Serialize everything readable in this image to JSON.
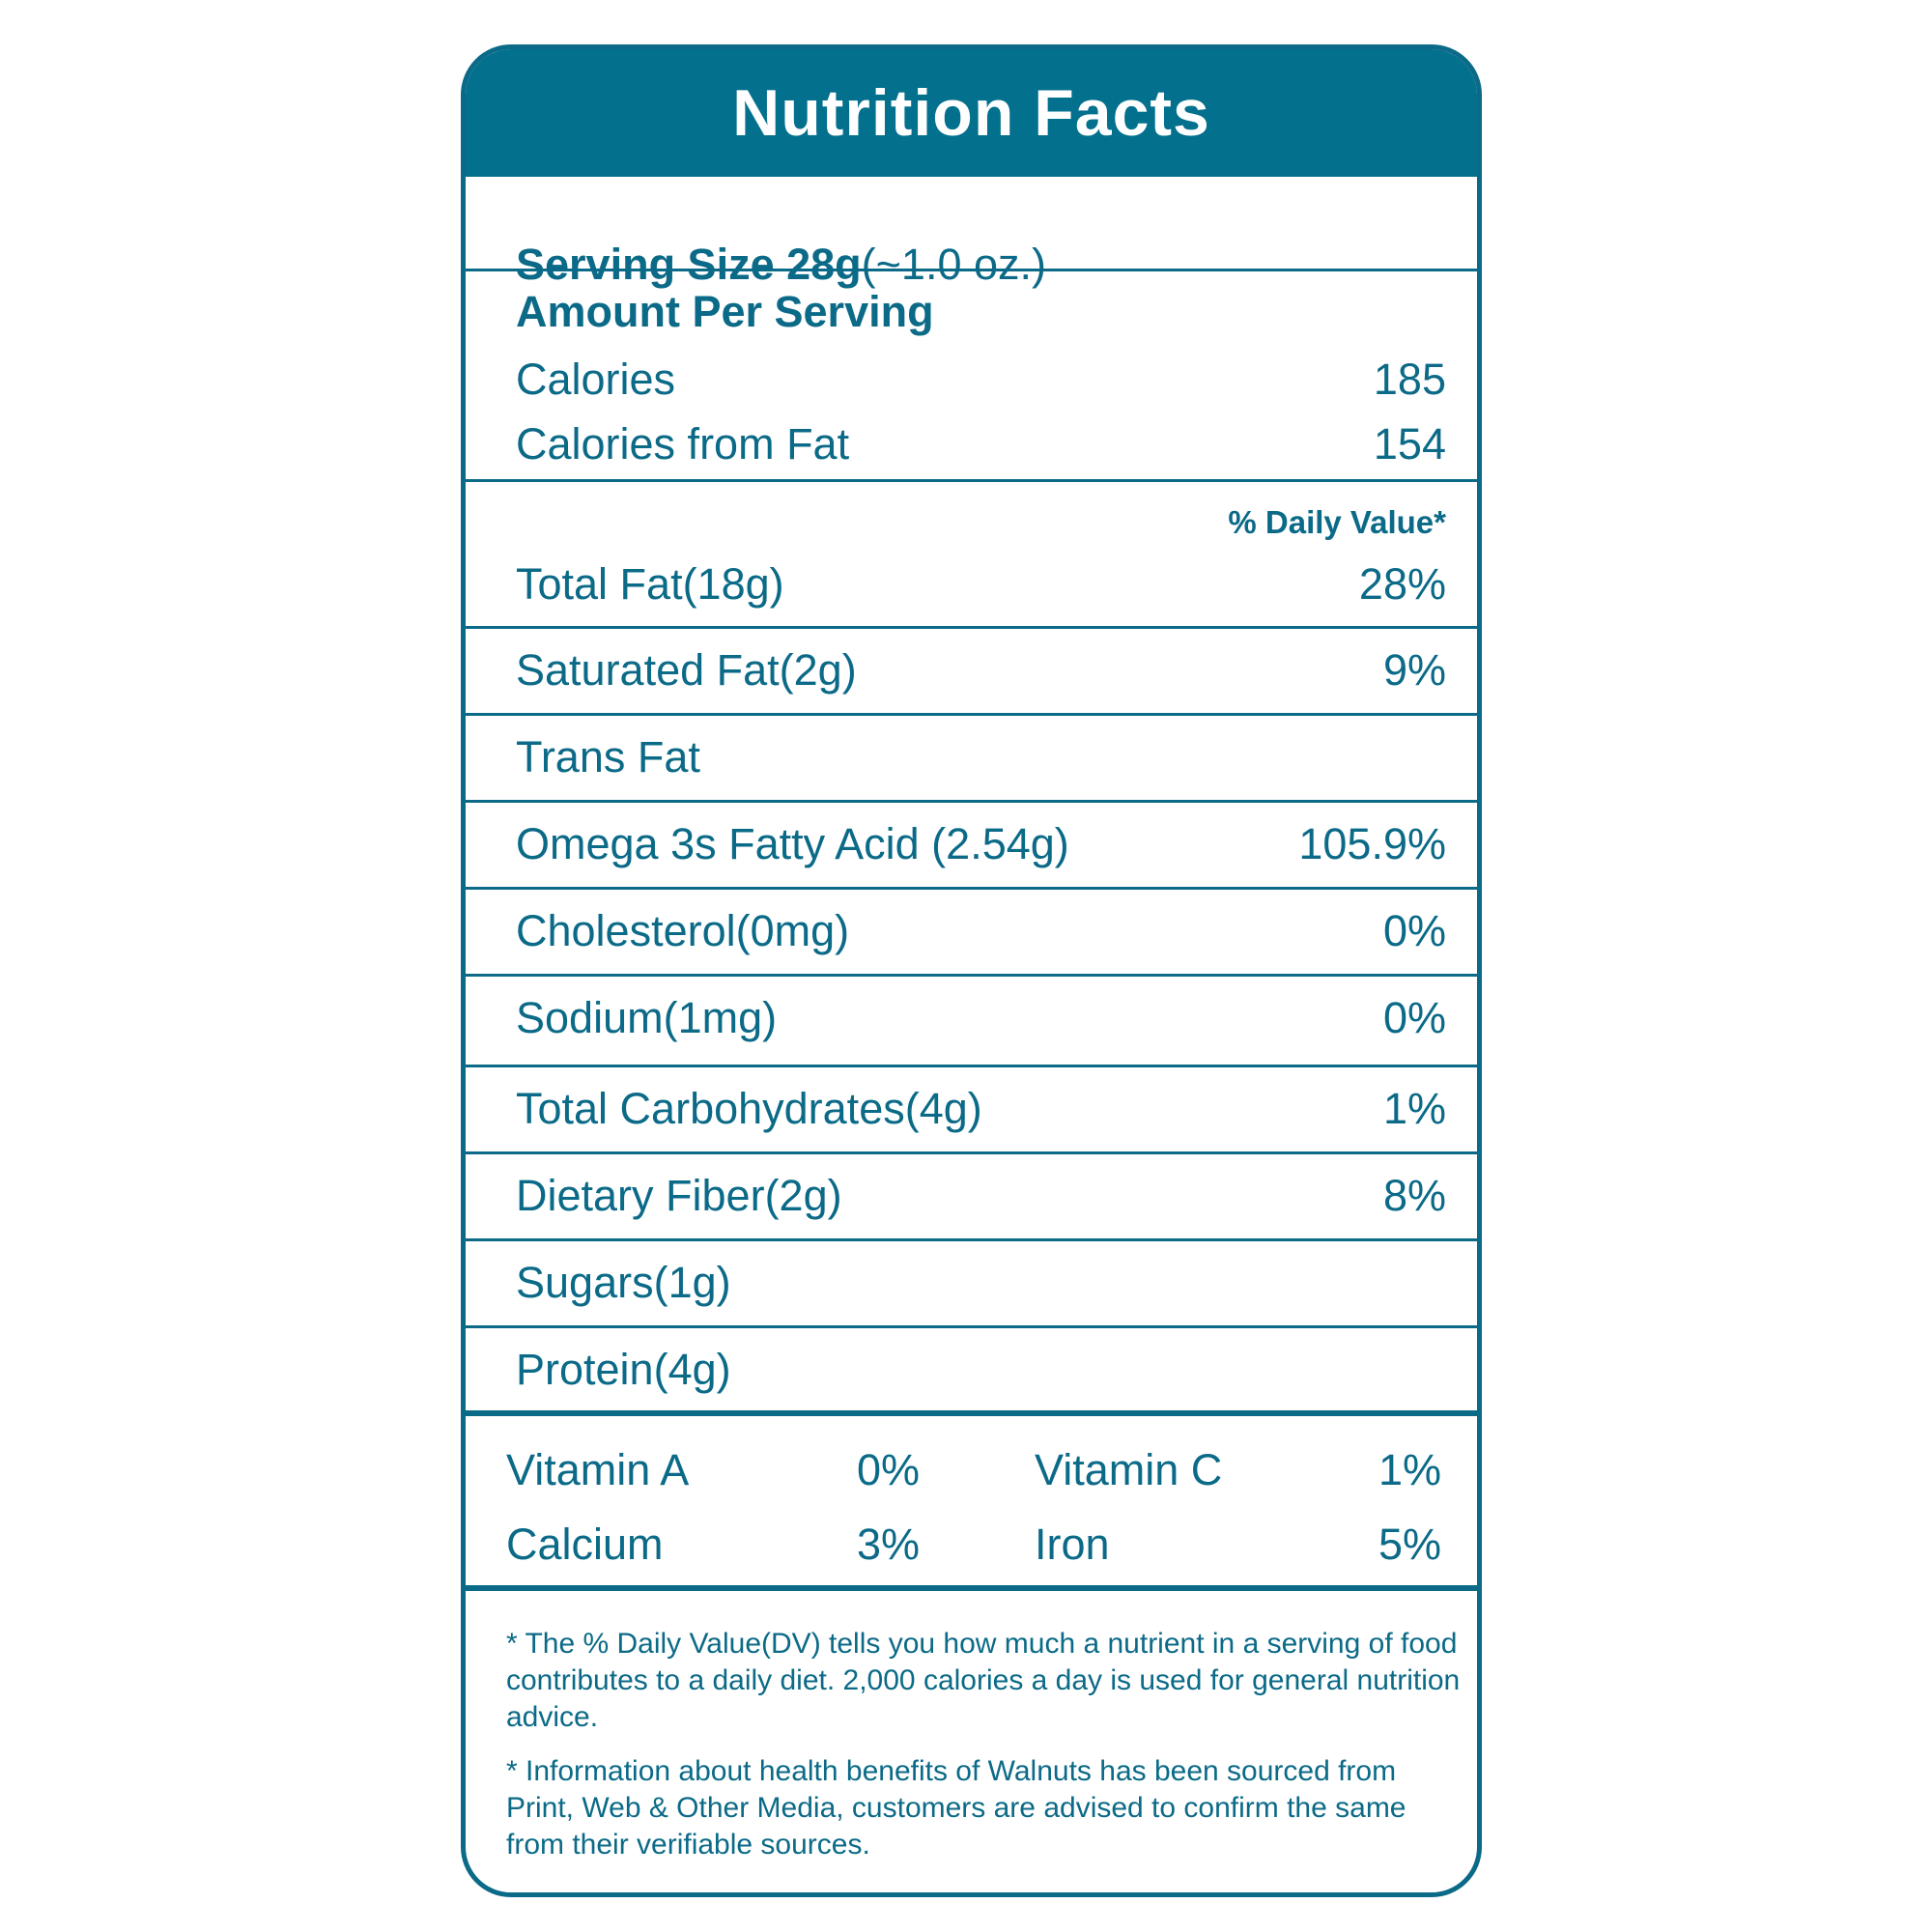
{
  "title": "Nutrition Facts",
  "serving": {
    "label": "Serving Size 28g",
    "note": "(~1.0 oz.)"
  },
  "amount_per_serving": "Amount Per Serving",
  "calories": {
    "label": "Calories",
    "value": "185"
  },
  "calories_from_fat": {
    "label": "Calories from Fat",
    "value": "154"
  },
  "daily_value_header": "% Daily Value*",
  "nutrients": [
    {
      "label": "Total Fat(18g)",
      "dv": "28%"
    },
    {
      "label": "Saturated Fat(2g)",
      "dv": "9%"
    },
    {
      "label": "Trans Fat",
      "dv": ""
    },
    {
      "label": "Omega 3s Fatty Acid (2.54g)",
      "dv": "105.9%"
    },
    {
      "label": "Cholesterol(0mg)",
      "dv": "0%"
    },
    {
      "label": "Sodium(1mg)",
      "dv": "0%"
    },
    {
      "label": "Total Carbohydrates(4g)",
      "dv": "1%"
    },
    {
      "label": "Dietary Fiber(2g)",
      "dv": "8%"
    },
    {
      "label": "Sugars(1g)",
      "dv": ""
    },
    {
      "label": "Protein(4g)",
      "dv": ""
    }
  ],
  "vitamins": [
    {
      "label": "Vitamin A",
      "value": "0%"
    },
    {
      "label": "Vitamin C",
      "value": "1%"
    },
    {
      "label": "Calcium",
      "value": "3%"
    },
    {
      "label": "Iron",
      "value": "5%"
    }
  ],
  "footnotes": [
    "* The % Daily Value(DV) tells you how much a nutrient in a serving of food contributes to a daily diet. 2,000 calories a day is used for general nutrition advice.",
    "* Information about health benefits of Walnuts has been sourced from Print, Web & Other Media, customers are advised to confirm the same from their verifiable sources."
  ],
  "colors": {
    "primary": "#03708d",
    "text": "#0b6a87"
  }
}
